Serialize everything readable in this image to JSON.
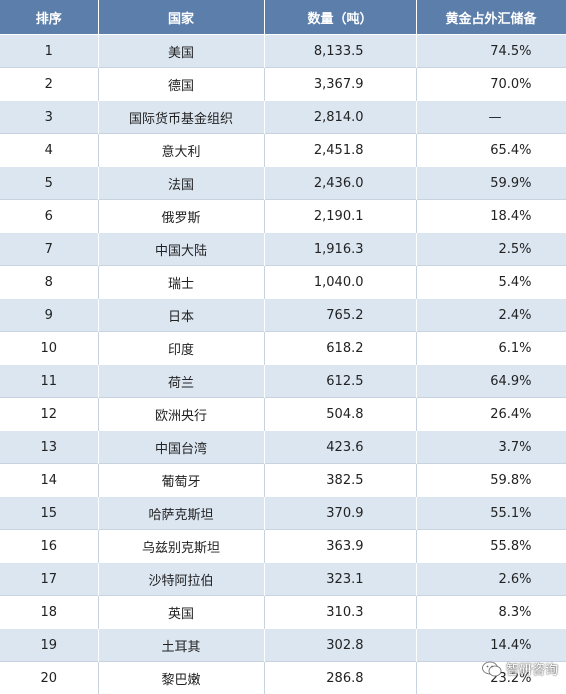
{
  "headers": {
    "rank": "排序",
    "country": "国家",
    "amount": "数量（吨）",
    "share": "黄金占外汇储备"
  },
  "rows": [
    {
      "rank": "1",
      "country": "美国",
      "amount": "8,133.5",
      "share": "74.5%"
    },
    {
      "rank": "2",
      "country": "德国",
      "amount": "3,367.9",
      "share": "70.0%"
    },
    {
      "rank": "3",
      "country": "国际货币基金组织",
      "amount": "2,814.0",
      "share": "—"
    },
    {
      "rank": "4",
      "country": "意大利",
      "amount": "2,451.8",
      "share": "65.4%"
    },
    {
      "rank": "5",
      "country": "法国",
      "amount": "2,436.0",
      "share": "59.9%"
    },
    {
      "rank": "6",
      "country": "俄罗斯",
      "amount": "2,190.1",
      "share": "18.4%"
    },
    {
      "rank": "7",
      "country": "中国大陆",
      "amount": "1,916.3",
      "share": "2.5%"
    },
    {
      "rank": "8",
      "country": "瑞士",
      "amount": "1,040.0",
      "share": "5.4%"
    },
    {
      "rank": "9",
      "country": "日本",
      "amount": "765.2",
      "share": "2.4%"
    },
    {
      "rank": "10",
      "country": "印度",
      "amount": "618.2",
      "share": "6.1%"
    },
    {
      "rank": "11",
      "country": "荷兰",
      "amount": "612.5",
      "share": "64.9%"
    },
    {
      "rank": "12",
      "country": "欧洲央行",
      "amount": "504.8",
      "share": "26.4%"
    },
    {
      "rank": "13",
      "country": "中国台湾",
      "amount": "423.6",
      "share": "3.7%"
    },
    {
      "rank": "14",
      "country": "葡萄牙",
      "amount": "382.5",
      "share": "59.8%"
    },
    {
      "rank": "15",
      "country": "哈萨克斯坦",
      "amount": "370.9",
      "share": "55.1%"
    },
    {
      "rank": "16",
      "country": "乌兹别克斯坦",
      "amount": "363.9",
      "share": "55.8%"
    },
    {
      "rank": "17",
      "country": "沙特阿拉伯",
      "amount": "323.1",
      "share": "2.6%"
    },
    {
      "rank": "18",
      "country": "英国",
      "amount": "310.3",
      "share": "8.3%"
    },
    {
      "rank": "19",
      "country": "土耳其",
      "amount": "302.8",
      "share": "14.4%"
    },
    {
      "rank": "20",
      "country": "黎巴嫩",
      "amount": "286.8",
      "share": "23.2%"
    }
  ],
  "watermark": {
    "text": "智研咨询",
    "icon": "wechat-icon"
  }
}
